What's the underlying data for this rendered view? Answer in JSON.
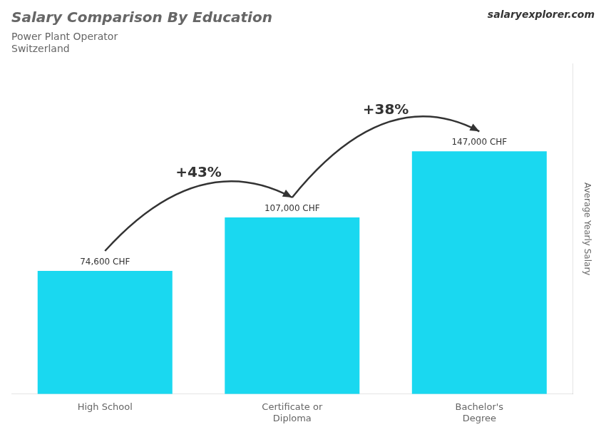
{
  "chart_data": {
    "type": "bar",
    "title": "Salary Comparison By Education",
    "subtitle": [
      "Power Plant Operator",
      "Switzerland"
    ],
    "ylabel": "Average Yearly Salary",
    "categories": [
      "High School",
      "Certificate or\nDiploma",
      "Bachelor's\nDegree"
    ],
    "values": [
      74600,
      107000,
      147000
    ],
    "value_labels": [
      "74,600 CHF",
      "107,000 CHF",
      "147,000 CHF"
    ],
    "data_labels": true,
    "annotations": [
      "salaryexplorer.com",
      "+43%",
      "+38%"
    ],
    "color": "#1ad8f0",
    "ylim": [
      0,
      200000
    ],
    "tick_labels": false,
    "grid": false
  }
}
